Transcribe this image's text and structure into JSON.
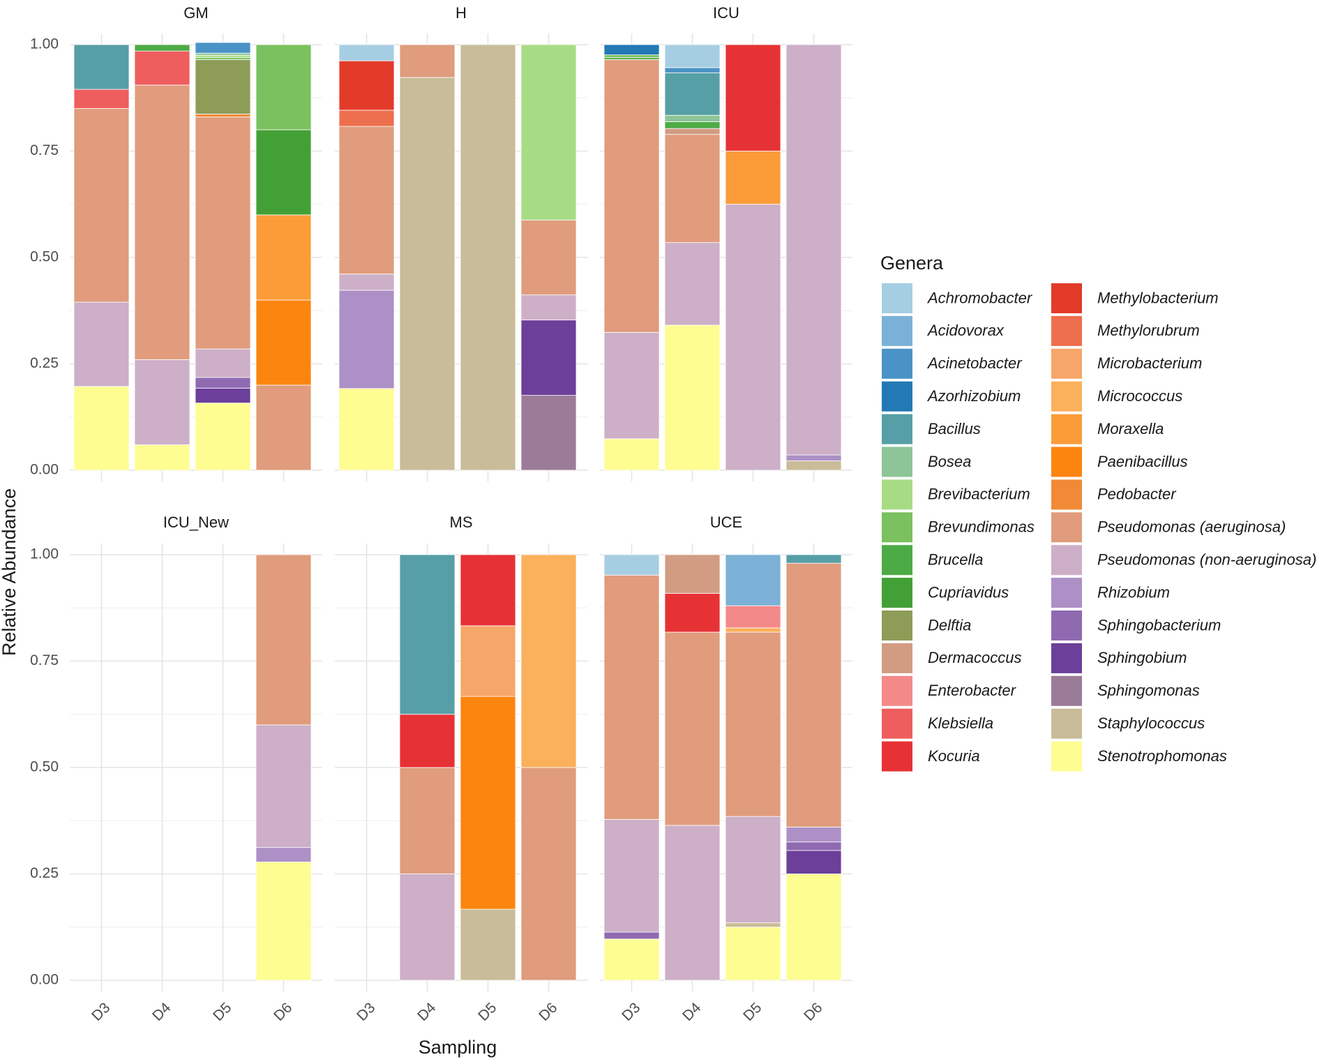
{
  "chart_data": {
    "type": "bar",
    "stacked": true,
    "facet_by": "location",
    "xlabel": "Sampling",
    "ylabel": "Relative Abundance",
    "ylim": [
      0,
      1
    ],
    "yticks": [
      "0.00",
      "0.25",
      "0.50",
      "0.75",
      "1.00"
    ],
    "ytick_values": [
      0,
      0.25,
      0.5,
      0.75,
      1.0
    ],
    "categories": [
      "D3",
      "D4",
      "D5",
      "D6"
    ],
    "legend": {
      "title": "Genera",
      "position": "right",
      "entries": [
        {
          "name": "Achromobacter",
          "color": "#A6CEE3"
        },
        {
          "name": "Acidovorax",
          "color": "#7BB1D6"
        },
        {
          "name": "Acinetobacter",
          "color": "#4A93C6"
        },
        {
          "name": "Azorhizobium",
          "color": "#2279B5"
        },
        {
          "name": "Bacillus",
          "color": "#579FA6"
        },
        {
          "name": "Bosea",
          "color": "#8DC498"
        },
        {
          "name": "Brevibacterium",
          "color": "#A8DC84"
        },
        {
          "name": "Brevundimonas",
          "color": "#7BC15F"
        },
        {
          "name": "Brucella",
          "color": "#4DAB45"
        },
        {
          "name": "Cupriavidus",
          "color": "#43A036"
        },
        {
          "name": "Delftia",
          "color": "#8D9D58"
        },
        {
          "name": "Dermacoccus",
          "color": "#D29C83"
        },
        {
          "name": "Enterobacter",
          "color": "#F4898A"
        },
        {
          "name": "Klebsiella",
          "color": "#EE5E5E"
        },
        {
          "name": "Kocuria",
          "color": "#E73235"
        },
        {
          "name": "Methylobacterium",
          "color": "#E33B2A"
        },
        {
          "name": "Methylorubrum",
          "color": "#EE6F4E"
        },
        {
          "name": "Microbacterium",
          "color": "#F6A668"
        },
        {
          "name": "Micrococcus",
          "color": "#FBB05B"
        },
        {
          "name": "Moraxella",
          "color": "#FB9C39"
        },
        {
          "name": "Paenibacillus",
          "color": "#FC8510"
        },
        {
          "name": "Pedobacter",
          "color": "#F08A36"
        },
        {
          "name": "Pseudomonas (aeruginosa)",
          "color": "#E09C7C"
        },
        {
          "name": "Pseudomonas (non-aeruginosa)",
          "color": "#CDAFC7"
        },
        {
          "name": "Rhizobium",
          "color": "#AD90C6"
        },
        {
          "name": "Sphingobacterium",
          "color": "#8F6AB1"
        },
        {
          "name": "Sphingobium",
          "color": "#6C3F9A"
        },
        {
          "name": "Sphingomonas",
          "color": "#9B7C98"
        },
        {
          "name": "Staphylococcus",
          "color": "#C9BC98"
        },
        {
          "name": "Stenotrophomonas",
          "color": "#FDFD92"
        }
      ]
    },
    "panels": [
      {
        "title": "GM",
        "bars": [
          {
            "x": "D3",
            "stack": [
              [
                "Stenotrophomonas",
                0.197
              ],
              [
                "Pseudomonas (non-aeruginosa)",
                0.198
              ],
              [
                "Pseudomonas (aeruginosa)",
                0.455
              ],
              [
                "Klebsiella",
                0.045
              ],
              [
                "Bacillus",
                0.105
              ]
            ]
          },
          {
            "x": "D4",
            "stack": [
              [
                "Stenotrophomonas",
                0.06
              ],
              [
                "Pseudomonas (non-aeruginosa)",
                0.2
              ],
              [
                "Pseudomonas (aeruginosa)",
                0.645
              ],
              [
                "Klebsiella",
                0.08
              ],
              [
                "Brucella",
                0.015
              ]
            ]
          },
          {
            "x": "D5",
            "stack": [
              [
                "Stenotrophomonas",
                0.158
              ],
              [
                "Sphingobium",
                0.035
              ],
              [
                "Sphingobacterium",
                0.025
              ],
              [
                "Pseudomonas (non-aeruginosa)",
                0.067
              ],
              [
                "Pseudomonas (aeruginosa)",
                0.545
              ],
              [
                "Pedobacter",
                0.007
              ],
              [
                "Delftia",
                0.128
              ],
              [
                "Brevundimonas",
                0.005
              ],
              [
                "Brevibacterium",
                0.005
              ],
              [
                "Bosea",
                0.005
              ],
              [
                "Acinetobacter",
                0.025
              ]
            ]
          },
          {
            "x": "D6",
            "stack": [
              [
                "Pseudomonas (aeruginosa)",
                0.2
              ],
              [
                "Paenibacillus",
                0.2
              ],
              [
                "Moraxella",
                0.2
              ],
              [
                "Cupriavidus",
                0.2
              ],
              [
                "Brevundimonas",
                0.2
              ]
            ]
          }
        ]
      },
      {
        "title": "H",
        "bars": [
          {
            "x": "D3",
            "stack": [
              [
                "Stenotrophomonas",
                0.192
              ],
              [
                "Rhizobium",
                0.231
              ],
              [
                "Pseudomonas (non-aeruginosa)",
                0.038
              ],
              [
                "Pseudomonas (aeruginosa)",
                0.347
              ],
              [
                "Methylorubrum",
                0.038
              ],
              [
                "Methylobacterium",
                0.116
              ],
              [
                "Achromobacter",
                0.038
              ]
            ]
          },
          {
            "x": "D4",
            "stack": [
              [
                "Staphylococcus",
                0.923
              ],
              [
                "Pseudomonas (aeruginosa)",
                0.077
              ]
            ]
          },
          {
            "x": "D5",
            "stack": [
              [
                "Staphylococcus",
                1.0
              ]
            ]
          },
          {
            "x": "D6",
            "stack": [
              [
                "Sphingomonas",
                0.176
              ],
              [
                "Sphingobium",
                0.177
              ],
              [
                "Pseudomonas (non-aeruginosa)",
                0.059
              ],
              [
                "Pseudomonas (aeruginosa)",
                0.176
              ],
              [
                "Brevibacterium",
                0.412
              ]
            ]
          }
        ]
      },
      {
        "title": "ICU",
        "bars": [
          {
            "x": "D3",
            "stack": [
              [
                "Stenotrophomonas",
                0.074
              ],
              [
                "Pseudomonas (non-aeruginosa)",
                0.25
              ],
              [
                "Pseudomonas (aeruginosa)",
                0.641
              ],
              [
                "Brucella",
                0.005
              ],
              [
                "Brevundimonas",
                0.006
              ],
              [
                "Azorhizobium",
                0.024
              ]
            ]
          },
          {
            "x": "D4",
            "stack": [
              [
                "Stenotrophomonas",
                0.341
              ],
              [
                "Pseudomonas (non-aeruginosa)",
                0.194
              ],
              [
                "Pseudomonas (aeruginosa)",
                0.254
              ],
              [
                "Dermacoccus",
                0.014
              ],
              [
                "Brucella",
                0.016
              ],
              [
                "Bosea",
                0.015
              ],
              [
                "Bacillus",
                0.1
              ],
              [
                "Acinetobacter",
                0.012
              ],
              [
                "Achromobacter",
                0.054
              ]
            ]
          },
          {
            "x": "D5",
            "stack": [
              [
                "Pseudomonas (non-aeruginosa)",
                0.625
              ],
              [
                "Moraxella",
                0.125
              ],
              [
                "Kocuria",
                0.25
              ]
            ]
          },
          {
            "x": "D6",
            "stack": [
              [
                "Staphylococcus",
                0.022
              ],
              [
                "Rhizobium",
                0.014
              ],
              [
                "Pseudomonas (non-aeruginosa)",
                0.964
              ]
            ]
          }
        ]
      },
      {
        "title": "ICU_New",
        "bars": [
          {
            "x": "D3",
            "stack": []
          },
          {
            "x": "D4",
            "stack": []
          },
          {
            "x": "D5",
            "stack": []
          },
          {
            "x": "D6",
            "stack": [
              [
                "Stenotrophomonas",
                0.278
              ],
              [
                "Rhizobium",
                0.034
              ],
              [
                "Pseudomonas (non-aeruginosa)",
                0.288
              ],
              [
                "Pseudomonas (aeruginosa)",
                0.4
              ]
            ]
          }
        ]
      },
      {
        "title": "MS",
        "bars": [
          {
            "x": "D3",
            "stack": []
          },
          {
            "x": "D4",
            "stack": [
              [
                "Pseudomonas (non-aeruginosa)",
                0.25
              ],
              [
                "Pseudomonas (aeruginosa)",
                0.25
              ],
              [
                "Kocuria",
                0.125
              ],
              [
                "Bacillus",
                0.375
              ]
            ]
          },
          {
            "x": "D5",
            "stack": [
              [
                "Staphylococcus",
                0.167
              ],
              [
                "Paenibacillus",
                0.5
              ],
              [
                "Microbacterium",
                0.166
              ],
              [
                "Kocuria",
                0.167
              ]
            ]
          },
          {
            "x": "D6",
            "stack": [
              [
                "Pseudomonas (aeruginosa)",
                0.5
              ],
              [
                "Micrococcus",
                0.5
              ]
            ]
          }
        ]
      },
      {
        "title": "UCE",
        "bars": [
          {
            "x": "D3",
            "stack": [
              [
                "Stenotrophomonas",
                0.097
              ],
              [
                "Sphingobacterium",
                0.016
              ],
              [
                "Pseudomonas (non-aeruginosa)",
                0.265
              ],
              [
                "Pseudomonas (aeruginosa)",
                0.574
              ],
              [
                "Achromobacter",
                0.048
              ]
            ]
          },
          {
            "x": "D4",
            "stack": [
              [
                "Pseudomonas (non-aeruginosa)",
                0.364
              ],
              [
                "Pseudomonas (aeruginosa)",
                0.454
              ],
              [
                "Kocuria",
                0.091
              ],
              [
                "Dermacoccus",
                0.091
              ]
            ]
          },
          {
            "x": "D5",
            "stack": [
              [
                "Stenotrophomonas",
                0.125
              ],
              [
                "Staphylococcus",
                0.01
              ],
              [
                "Pseudomonas (non-aeruginosa)",
                0.25
              ],
              [
                "Pseudomonas (aeruginosa)",
                0.433
              ],
              [
                "Micrococcus",
                0.01
              ],
              [
                "Enterobacter",
                0.052
              ],
              [
                "Acidovorax",
                0.12
              ]
            ]
          },
          {
            "x": "D6",
            "stack": [
              [
                "Stenotrophomonas",
                0.25
              ],
              [
                "Sphingobium",
                0.055
              ],
              [
                "Sphingobacterium",
                0.02
              ],
              [
                "Rhizobium",
                0.035
              ],
              [
                "Pseudomonas (aeruginosa)",
                0.62
              ],
              [
                "Bacillus",
                0.02
              ]
            ]
          }
        ]
      }
    ]
  }
}
